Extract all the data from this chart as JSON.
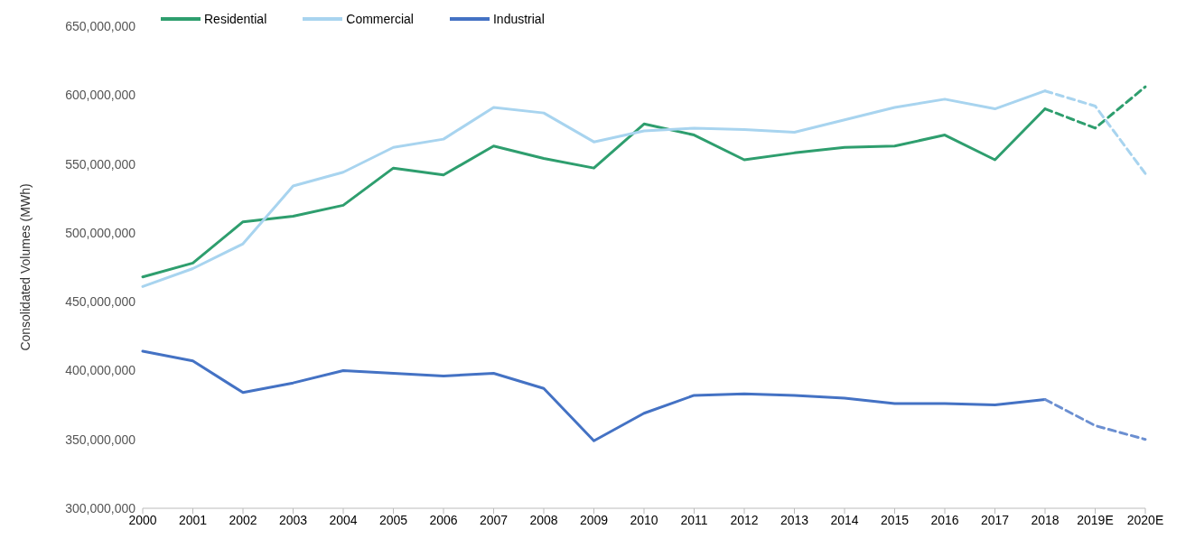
{
  "chart_data": {
    "type": "line",
    "ylabel": "Consolidated Volumes (MWh)",
    "categories": [
      "2000",
      "2001",
      "2002",
      "2003",
      "2004",
      "2005",
      "2006",
      "2007",
      "2008",
      "2009",
      "2010",
      "2011",
      "2012",
      "2013",
      "2014",
      "2015",
      "2016",
      "2017",
      "2018",
      "2019E",
      "2020E"
    ],
    "ylim": [
      300000000,
      650000000
    ],
    "yticks": [
      {
        "value": 300000000,
        "label": "300,000,000"
      },
      {
        "value": 350000000,
        "label": "350,000,000"
      },
      {
        "value": 400000000,
        "label": "400,000,000"
      },
      {
        "value": 450000000,
        "label": "450,000,000"
      },
      {
        "value": 500000000,
        "label": "500,000,000"
      },
      {
        "value": 550000000,
        "label": "550,000,000"
      },
      {
        "value": 600000000,
        "label": "600,000,000"
      },
      {
        "value": 650000000,
        "label": "650,000,000"
      }
    ],
    "grid": false,
    "legend": "top left",
    "marker": "none",
    "series": [
      {
        "name": "Residential",
        "color": "#2e9e6e",
        "line_style": "solid",
        "values": [
          468000000,
          478000000,
          508000000,
          512000000,
          520000000,
          547000000,
          542000000,
          563000000,
          554000000,
          547000000,
          579000000,
          571000000,
          553000000,
          558000000,
          562000000,
          563000000,
          571000000,
          553000000,
          590000000,
          null,
          null
        ]
      },
      {
        "name": "Commercial",
        "color": "#a8d4ef",
        "line_style": "solid",
        "values": [
          461000000,
          474000000,
          492000000,
          534000000,
          544000000,
          562000000,
          568000000,
          591000000,
          587000000,
          566000000,
          574000000,
          576000000,
          575000000,
          573000000,
          582000000,
          591000000,
          597000000,
          590000000,
          603000000,
          null,
          null
        ]
      },
      {
        "name": "Industrial",
        "color": "#4472c4",
        "line_style": "solid",
        "values": [
          414000000,
          407000000,
          384000000,
          391000000,
          400000000,
          398000000,
          396000000,
          398000000,
          387000000,
          349000000,
          369000000,
          382000000,
          383000000,
          382000000,
          380000000,
          376000000,
          376000000,
          375000000,
          379000000,
          null,
          null
        ]
      },
      {
        "color": "#2e9e6e",
        "line_style": "dashed",
        "values": [
          null,
          null,
          null,
          null,
          null,
          null,
          null,
          null,
          null,
          null,
          null,
          null,
          null,
          null,
          null,
          null,
          null,
          null,
          590000000,
          576000000,
          606000000
        ]
      },
      {
        "color": "#a8d4ef",
        "line_style": "dashed",
        "values": [
          null,
          null,
          null,
          null,
          null,
          null,
          null,
          null,
          null,
          null,
          null,
          null,
          null,
          null,
          null,
          null,
          null,
          null,
          603000000,
          592000000,
          543000000
        ]
      },
      {
        "color": "#6b8fd1",
        "line_style": "dashed",
        "values": [
          null,
          null,
          null,
          null,
          null,
          null,
          null,
          null,
          null,
          null,
          null,
          null,
          null,
          null,
          null,
          null,
          null,
          null,
          379000000,
          360000000,
          350000000
        ]
      }
    ]
  }
}
